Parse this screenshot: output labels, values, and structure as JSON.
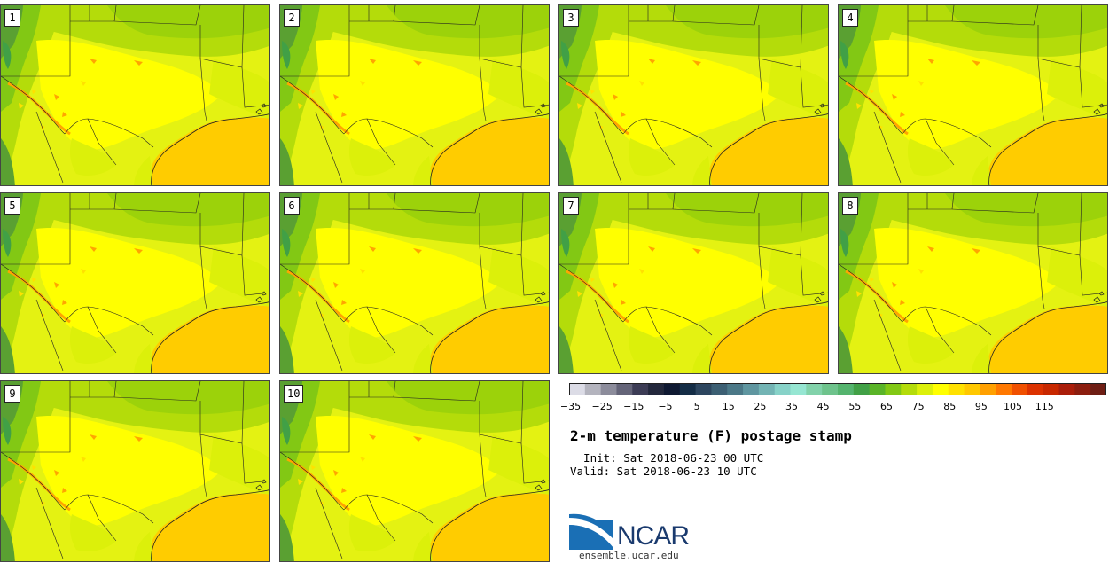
{
  "stamps": [
    "1",
    "2",
    "3",
    "4",
    "5",
    "6",
    "7",
    "8",
    "9",
    "10"
  ],
  "colors": {
    "gulf": "#ffcc00",
    "land_base": "#e4f212",
    "warm_land": "#ffff00",
    "cool_green": "#b4dc0a",
    "deep_green": "#5aa032",
    "hot_patch": "#ffa500",
    "border": "#222222"
  },
  "colorbar": {
    "ticks": [
      "−35",
      "−25",
      "−15",
      "−5",
      "5",
      "15",
      "25",
      "35",
      "45",
      "55",
      "65",
      "75",
      "85",
      "95",
      "105",
      "115"
    ],
    "colors": [
      "#dcdce6",
      "#b4b4be",
      "#8c8c9b",
      "#646478",
      "#3c3c55",
      "#23283c",
      "#0f1932",
      "#142d46",
      "#2d465f",
      "#3c5f73",
      "#4b7887",
      "#5f96a0",
      "#73b4b4",
      "#87d2c8",
      "#96e6d2",
      "#82d2aa",
      "#6ec38c",
      "#55b46e",
      "#41a046",
      "#5ab428",
      "#82c814",
      "#b4dc0a",
      "#dcf00a",
      "#ffff00",
      "#ffe100",
      "#ffc800",
      "#ffa000",
      "#ff7800",
      "#f05000",
      "#dc3200",
      "#c82800",
      "#aa1e0a",
      "#8c1e0f",
      "#6e1e14"
    ]
  },
  "title": "2-m temperature (F) postage stamp",
  "init": "  Init: Sat 2018-06-23 00 UTC",
  "valid": "Valid: Sat 2018-06-23 10 UTC",
  "logo": {
    "name": "NCAR",
    "site": "ensemble.ucar.edu"
  }
}
